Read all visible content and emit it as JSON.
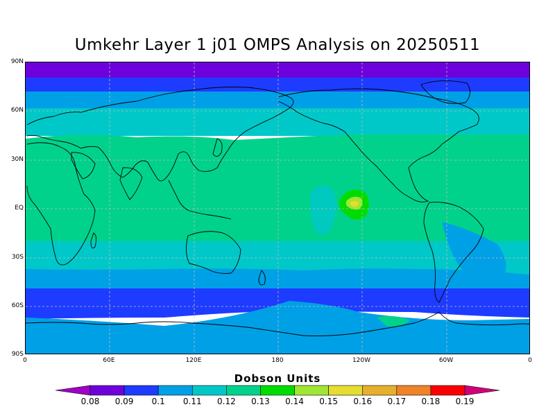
{
  "title": "Umkehr Layer 1 j01 OMPS Analysis on 20250511",
  "map": {
    "lat_labels": [
      "90N",
      "60N",
      "30N",
      "EQ",
      "30S",
      "60S",
      "90S"
    ],
    "lon_labels": [
      "0",
      "60E",
      "120E",
      "180",
      "120W",
      "60W",
      "0"
    ]
  },
  "colorbar": {
    "title": "Dobson Units",
    "levels": [
      "0.08",
      "0.09",
      "0.1",
      "0.11",
      "0.12",
      "0.13",
      "0.14",
      "0.15",
      "0.16",
      "0.17",
      "0.18",
      "0.19"
    ],
    "colors": [
      "#a000c8",
      "#6e00dc",
      "#1e3cff",
      "#00a0e6",
      "#00c8c8",
      "#00d28c",
      "#00dc00",
      "#a0e632",
      "#e6dc32",
      "#e6af2d",
      "#f08228",
      "#fa0000",
      "#d20078"
    ]
  }
}
